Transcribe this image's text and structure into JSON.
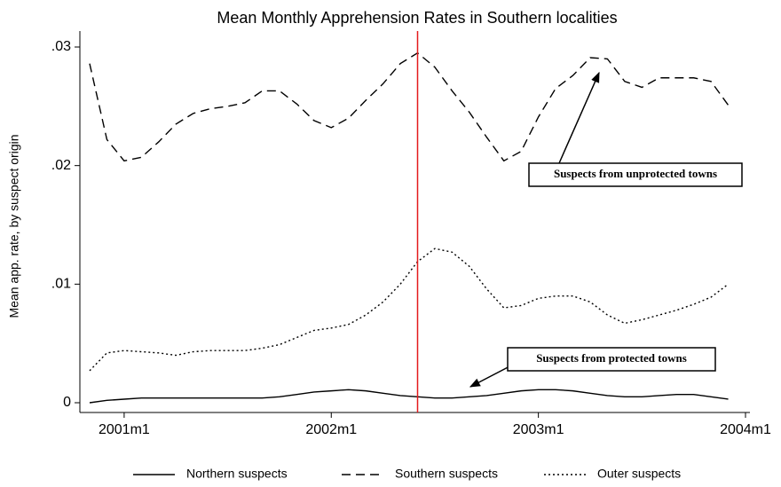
{
  "chart_data": {
    "type": "line",
    "title": "Mean Monthly Apprehension Rates in Southern localities",
    "y_label": "Mean app. rate, by suspect origin",
    "x": [
      "2000m11",
      "2000m12",
      "2001m1",
      "2001m2",
      "2001m3",
      "2001m4",
      "2001m5",
      "2001m6",
      "2001m7",
      "2001m8",
      "2001m9",
      "2001m10",
      "2001m11",
      "2001m12",
      "2002m1",
      "2002m2",
      "2002m3",
      "2002m4",
      "2002m5",
      "2002m6",
      "2002m7",
      "2002m8",
      "2002m9",
      "2002m10",
      "2002m11",
      "2002m12",
      "2003m1",
      "2003m2",
      "2003m3",
      "2003m4",
      "2003m5",
      "2003m6",
      "2003m7",
      "2003m8",
      "2003m9",
      "2003m10",
      "2003m11",
      "2003m12"
    ],
    "series": [
      {
        "name": "Northern suspects",
        "color": "#000000",
        "dash": "solid",
        "values": [
          0,
          0.0002,
          0.0003,
          0.0004,
          0.0004,
          0.0004,
          0.0004,
          0.0004,
          0.0004,
          0.0004,
          0.0004,
          0.0005,
          0.0007,
          0.0009,
          0.001,
          0.0011,
          0.001,
          0.0008,
          0.0006,
          0.0005,
          0.0004,
          0.0004,
          0.0005,
          0.0006,
          0.0008,
          0.001,
          0.0011,
          0.0011,
          0.001,
          0.0008,
          0.0006,
          0.0005,
          0.0005,
          0.0006,
          0.0007,
          0.0007,
          0.0005,
          0.0003
        ]
      },
      {
        "name": "Southern suspects",
        "color": "#000000",
        "dash": "dashed",
        "values": [
          0.0286,
          0.0222,
          0.0204,
          0.0207,
          0.022,
          0.0235,
          0.0244,
          0.0248,
          0.025,
          0.0253,
          0.0263,
          0.0263,
          0.0252,
          0.0238,
          0.0232,
          0.024,
          0.0255,
          0.0269,
          0.0286,
          0.0295,
          0.0283,
          0.0263,
          0.0245,
          0.0224,
          0.0204,
          0.0212,
          0.0241,
          0.0265,
          0.0276,
          0.0291,
          0.029,
          0.0271,
          0.0266,
          0.0274,
          0.0274,
          0.0274,
          0.0271,
          0.0251
        ]
      },
      {
        "name": "Outer suspects",
        "color": "#000000",
        "dash": "dotted",
        "values": [
          0.0027,
          0.0042,
          0.0044,
          0.0043,
          0.0042,
          0.004,
          0.0043,
          0.0044,
          0.0044,
          0.0044,
          0.0046,
          0.0049,
          0.0055,
          0.0061,
          0.0063,
          0.0066,
          0.0074,
          0.0085,
          0.01,
          0.0119,
          0.013,
          0.0127,
          0.0115,
          0.0096,
          0.008,
          0.0082,
          0.0088,
          0.009,
          0.009,
          0.0085,
          0.0074,
          0.0067,
          0.007,
          0.0074,
          0.0078,
          0.0083,
          0.0089,
          0.01
        ]
      }
    ],
    "xlim": [
      "2000m11",
      "2004m1"
    ],
    "xticks": [
      "2001m1",
      "2002m1",
      "2003m1",
      "2004m1"
    ],
    "ylim": [
      0,
      0.03
    ],
    "yticks": [
      0,
      {
        "value": 0.01,
        "label": ".01"
      },
      {
        "value": 0.02,
        "label": ".02"
      },
      {
        "value": 0.03,
        "label": ".03"
      }
    ],
    "vline": {
      "x": "2002m6",
      "color": "#e41a1c"
    },
    "annotations": [
      "Suspects from unprotected towns",
      "Suspects from protected towns"
    ],
    "legend": "bottom"
  }
}
